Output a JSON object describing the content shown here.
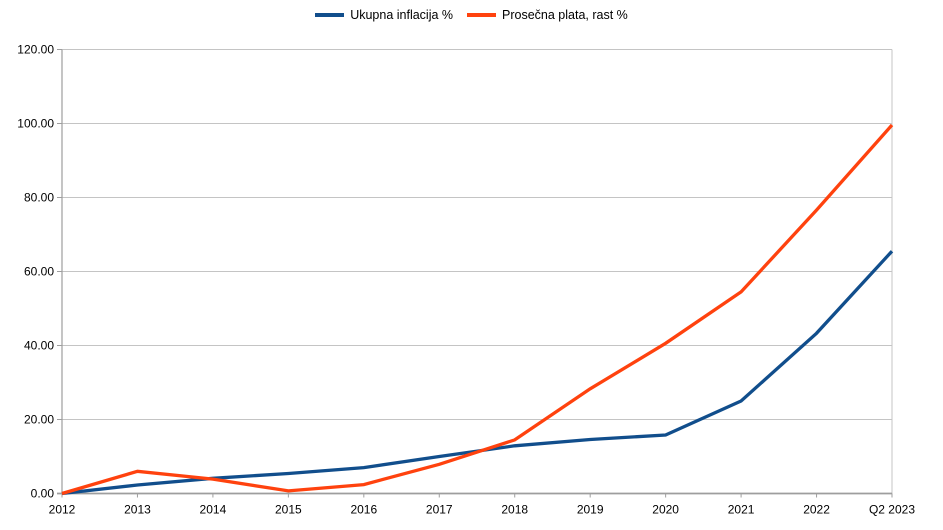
{
  "chart_data": {
    "type": "line",
    "title": "",
    "xlabel": "",
    "ylabel": "",
    "categories": [
      "2012",
      "2013",
      "2014",
      "2015",
      "2016",
      "2017",
      "2018",
      "2019",
      "2020",
      "2021",
      "2022",
      "Q2 2023"
    ],
    "series": [
      {
        "name": "Ukupna inflacija %",
        "color": "#114e8c",
        "values": [
          0,
          2.3,
          4.1,
          5.4,
          7.0,
          10.0,
          12.9,
          14.6,
          15.8,
          25.0,
          43.3,
          65.5
        ]
      },
      {
        "name": "Prosečna plata, rast %",
        "color": "#ff420e",
        "values": [
          0,
          6.0,
          3.9,
          0.7,
          2.4,
          7.9,
          14.5,
          28.3,
          40.6,
          54.5,
          76.6,
          99.6
        ]
      }
    ],
    "ylim": [
      0,
      120
    ],
    "ytick_step": 20,
    "ytick_labels": [
      "0.00",
      "20.00",
      "40.00",
      "60.00",
      "80.00",
      "100.00",
      "120.00"
    ],
    "grid": "horizontal",
    "legend_position": "top-center",
    "colors": {
      "grid": "#c4c4c4",
      "axis": "#9e9e9e",
      "text": "#000000",
      "background": "#ffffff"
    }
  }
}
